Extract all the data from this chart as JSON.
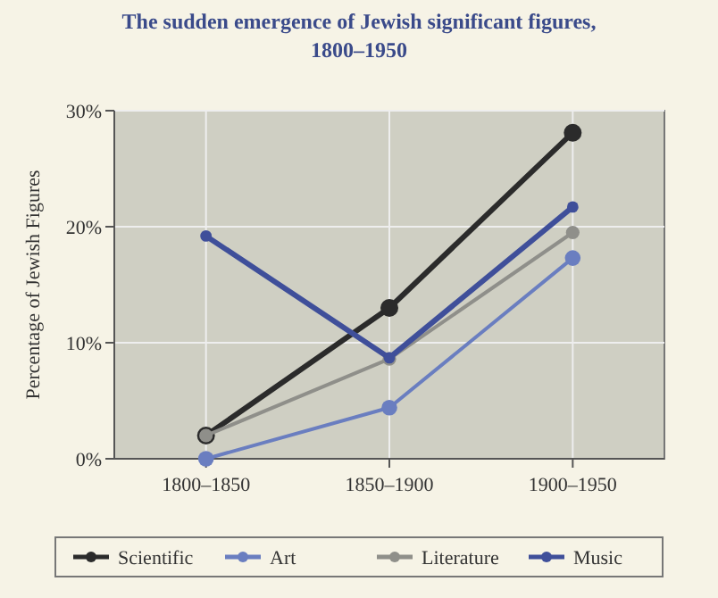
{
  "chart_data": {
    "type": "line",
    "title": "The sudden emergence of Jewish significant figures,\n1800–1950",
    "ylabel": "Percentage of Jewish Figures",
    "categories": [
      "1800–1850",
      "1850–1900",
      "1900–1950"
    ],
    "series": [
      {
        "name": "Scientific",
        "color": "#2b2b2b",
        "values": [
          2.0,
          13.0,
          28.1
        ]
      },
      {
        "name": "Art",
        "color": "#6a7ec0",
        "values": [
          0,
          4.4,
          17.3
        ]
      },
      {
        "name": "Literature",
        "color": "#8f8f8a",
        "values": [
          2.0,
          8.6,
          19.5
        ]
      },
      {
        "name": "Music",
        "color": "#3f4f9a",
        "values": [
          19.2,
          8.7,
          21.7
        ]
      }
    ],
    "ylim": [
      0,
      30
    ],
    "yticks": [
      {
        "value": 0,
        "label": "0%"
      },
      {
        "value": 10,
        "label": "10%"
      },
      {
        "value": 20,
        "label": "20%"
      },
      {
        "value": 30,
        "label": "30%"
      }
    ],
    "grid": true,
    "legend": "bottom",
    "marker": "circle",
    "line_style": "solid"
  }
}
